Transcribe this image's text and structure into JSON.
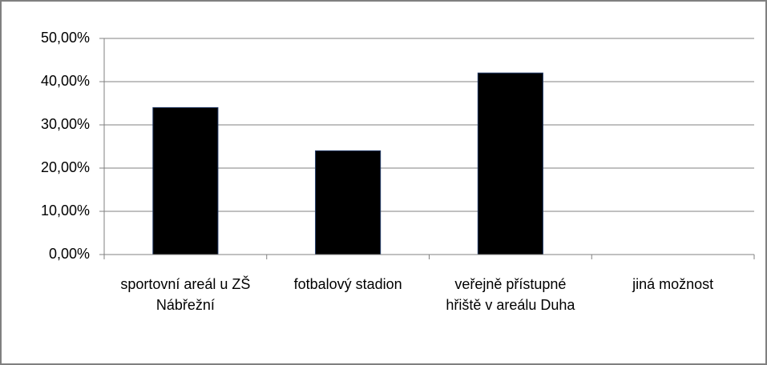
{
  "chart_data": {
    "type": "bar",
    "categories": [
      "sportovní areál u ZŠ Nábřežní",
      "fotbalový stadion",
      "veřejně přístupné hřiště v areálu Duha",
      "jiná možnost"
    ],
    "values": [
      34,
      24,
      42,
      0
    ],
    "color": "#000000",
    "ylim": [
      0,
      50
    ],
    "yticks": [
      {
        "value": 0,
        "label": "0,00%"
      },
      {
        "value": 10,
        "label": "10,00%"
      },
      {
        "value": 20,
        "label": "20,00%"
      },
      {
        "value": 30,
        "label": "30,00%"
      },
      {
        "value": 40,
        "label": "40,00%"
      },
      {
        "value": 50,
        "label": "50,00%"
      }
    ],
    "grid": true
  }
}
